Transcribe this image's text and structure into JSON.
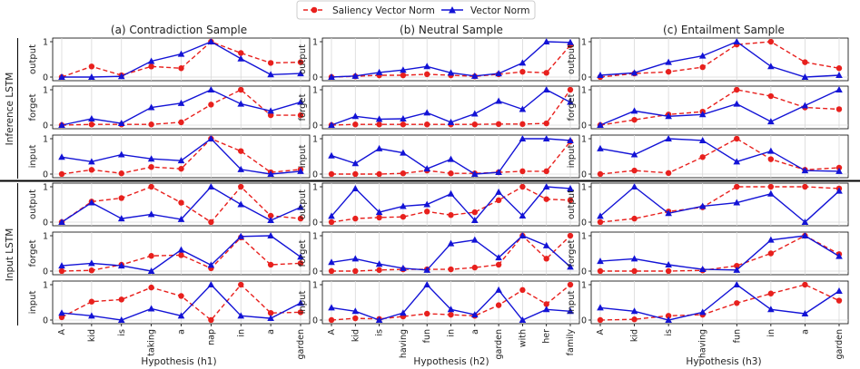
{
  "legend": {
    "saliency_label": "Saliency Vector Norm",
    "vector_label": "Vector Norm"
  },
  "colors": {
    "saliency": "#e8201d",
    "vector": "#1313d6"
  },
  "columns": [
    {
      "title": "(a) Contradiction Sample",
      "xlabel": "Hypothesis (h1)",
      "words": [
        "A",
        "kid",
        "is",
        "taking",
        "a",
        "nap",
        "in",
        "a",
        "garden"
      ]
    },
    {
      "title": "(b) Neutral Sample",
      "xlabel": "Hypothesis (h2)",
      "words": [
        "A",
        "kid",
        "is",
        "having",
        "fun",
        "in",
        "a",
        "garden",
        "with",
        "her",
        "family"
      ]
    },
    {
      "title": "(c) Entailment Sample",
      "xlabel": "Hypothesis (h3)",
      "words": [
        "A",
        "kid",
        "is",
        "having",
        "fun",
        "in",
        "a",
        "garden"
      ]
    }
  ],
  "groups": [
    {
      "label": "Inference LSTM",
      "rows": [
        "output",
        "forget",
        "input"
      ]
    },
    {
      "label": "Input LSTM",
      "rows": [
        "output",
        "forget",
        "input"
      ]
    }
  ],
  "y_ticks": [
    "0",
    "1"
  ],
  "chart_data": {
    "type": "line",
    "ylim": [
      0,
      1
    ],
    "series_names": [
      "Saliency Vector Norm",
      "Vector Norm"
    ],
    "panels": [
      {
        "column": 0,
        "group": "Inference LSTM",
        "gate": "output",
        "saliency": [
          0.0,
          0.3,
          0.05,
          0.3,
          0.25,
          1.0,
          0.68,
          0.4,
          0.42
        ],
        "vector": [
          0.0,
          0.0,
          0.02,
          0.45,
          0.65,
          1.0,
          0.52,
          0.07,
          0.1
        ]
      },
      {
        "column": 0,
        "group": "Inference LSTM",
        "gate": "forget",
        "saliency": [
          0.0,
          0.02,
          0.02,
          0.02,
          0.08,
          0.58,
          1.0,
          0.28,
          0.28
        ],
        "vector": [
          0.0,
          0.18,
          0.05,
          0.5,
          0.62,
          1.0,
          0.6,
          0.4,
          0.65
        ]
      },
      {
        "column": 0,
        "group": "Inference LSTM",
        "gate": "input",
        "saliency": [
          0.0,
          0.12,
          0.02,
          0.2,
          0.15,
          1.0,
          0.65,
          0.05,
          0.13
        ],
        "vector": [
          0.48,
          0.35,
          0.55,
          0.43,
          0.38,
          1.0,
          0.13,
          0.0,
          0.08
        ]
      },
      {
        "column": 0,
        "group": "Input LSTM",
        "gate": "output",
        "saliency": [
          0.0,
          0.58,
          0.68,
          1.0,
          0.55,
          0.0,
          1.0,
          0.18,
          0.1
        ],
        "vector": [
          0.0,
          0.55,
          0.1,
          0.22,
          0.08,
          1.0,
          0.5,
          0.05,
          0.42
        ]
      },
      {
        "column": 0,
        "group": "Input LSTM",
        "gate": "forget",
        "saliency": [
          0.0,
          0.02,
          0.18,
          0.43,
          0.45,
          0.08,
          0.95,
          0.18,
          0.22
        ],
        "vector": [
          0.15,
          0.22,
          0.15,
          0.0,
          0.6,
          0.17,
          0.98,
          1.0,
          0.4
        ]
      },
      {
        "column": 0,
        "group": "Input LSTM",
        "gate": "input",
        "saliency": [
          0.08,
          0.52,
          0.58,
          0.92,
          0.68,
          0.0,
          1.0,
          0.2,
          0.22
        ],
        "vector": [
          0.2,
          0.12,
          0.0,
          0.32,
          0.12,
          1.0,
          0.12,
          0.05,
          0.48
        ]
      },
      {
        "column": 1,
        "group": "Inference LSTM",
        "gate": "output",
        "saliency": [
          0.0,
          0.02,
          0.05,
          0.05,
          0.08,
          0.05,
          0.02,
          0.08,
          0.15,
          0.12,
          0.9
        ],
        "vector": [
          0.0,
          0.03,
          0.13,
          0.2,
          0.3,
          0.12,
          0.03,
          0.1,
          0.4,
          1.0,
          0.98
        ]
      },
      {
        "column": 1,
        "group": "Inference LSTM",
        "gate": "forget",
        "saliency": [
          0.0,
          0.02,
          0.02,
          0.02,
          0.02,
          0.02,
          0.02,
          0.03,
          0.03,
          0.05,
          1.0
        ],
        "vector": [
          0.0,
          0.25,
          0.17,
          0.18,
          0.35,
          0.08,
          0.32,
          0.68,
          0.45,
          1.0,
          0.65
        ]
      },
      {
        "column": 1,
        "group": "Inference LSTM",
        "gate": "input",
        "saliency": [
          0.0,
          0.0,
          0.0,
          0.02,
          0.1,
          0.02,
          0.02,
          0.05,
          0.08,
          0.08,
          0.92
        ],
        "vector": [
          0.52,
          0.3,
          0.72,
          0.6,
          0.15,
          0.42,
          0.0,
          0.05,
          1.0,
          1.0,
          0.95
        ]
      },
      {
        "column": 1,
        "group": "Input LSTM",
        "gate": "output",
        "saliency": [
          0.0,
          0.1,
          0.13,
          0.15,
          0.3,
          0.2,
          0.28,
          0.62,
          1.0,
          0.65,
          0.62
        ],
        "vector": [
          0.17,
          0.95,
          0.28,
          0.45,
          0.5,
          0.8,
          0.05,
          0.85,
          0.18,
          1.0,
          0.95
        ]
      },
      {
        "column": 1,
        "group": "Input LSTM",
        "gate": "forget",
        "saliency": [
          0.0,
          0.0,
          0.03,
          0.05,
          0.05,
          0.05,
          0.1,
          0.18,
          1.0,
          0.35,
          1.0
        ],
        "vector": [
          0.25,
          0.35,
          0.2,
          0.08,
          0.03,
          0.78,
          0.88,
          0.38,
          1.0,
          0.72,
          0.12
        ]
      },
      {
        "column": 1,
        "group": "Input LSTM",
        "gate": "input",
        "saliency": [
          0.0,
          0.05,
          0.03,
          0.1,
          0.18,
          0.15,
          0.12,
          0.42,
          0.85,
          0.45,
          1.0
        ],
        "vector": [
          0.35,
          0.25,
          0.0,
          0.2,
          1.0,
          0.3,
          0.15,
          0.85,
          0.0,
          0.3,
          0.25
        ]
      },
      {
        "column": 2,
        "group": "Inference LSTM",
        "gate": "output",
        "saliency": [
          0.0,
          0.1,
          0.15,
          0.28,
          0.92,
          1.0,
          0.42,
          0.25
        ],
        "vector": [
          0.05,
          0.12,
          0.42,
          0.6,
          1.0,
          0.3,
          0.0,
          0.05
        ]
      },
      {
        "column": 2,
        "group": "Inference LSTM",
        "gate": "forget",
        "saliency": [
          0.0,
          0.15,
          0.3,
          0.38,
          1.0,
          0.82,
          0.5,
          0.45
        ],
        "vector": [
          0.0,
          0.4,
          0.25,
          0.3,
          0.6,
          0.1,
          0.55,
          1.0
        ]
      },
      {
        "column": 2,
        "group": "Inference LSTM",
        "gate": "input",
        "saliency": [
          0.0,
          0.1,
          0.03,
          0.48,
          1.0,
          0.42,
          0.12,
          0.18
        ],
        "vector": [
          0.72,
          0.55,
          1.0,
          0.95,
          0.35,
          0.65,
          0.1,
          0.08
        ]
      },
      {
        "column": 2,
        "group": "Input LSTM",
        "gate": "output",
        "saliency": [
          0.0,
          0.1,
          0.3,
          0.42,
          1.0,
          1.0,
          1.0,
          0.95
        ],
        "vector": [
          0.17,
          1.0,
          0.25,
          0.45,
          0.55,
          0.8,
          0.0,
          0.88
        ]
      },
      {
        "column": 2,
        "group": "Input LSTM",
        "gate": "forget",
        "saliency": [
          0.0,
          0.0,
          0.0,
          0.02,
          0.15,
          0.5,
          1.0,
          0.48
        ],
        "vector": [
          0.28,
          0.35,
          0.18,
          0.05,
          0.03,
          0.88,
          1.0,
          0.42
        ]
      },
      {
        "column": 2,
        "group": "Input LSTM",
        "gate": "input",
        "saliency": [
          0.0,
          0.02,
          0.12,
          0.15,
          0.48,
          0.75,
          1.0,
          0.55
        ],
        "vector": [
          0.35,
          0.25,
          0.0,
          0.22,
          1.0,
          0.3,
          0.18,
          0.82
        ]
      }
    ]
  }
}
